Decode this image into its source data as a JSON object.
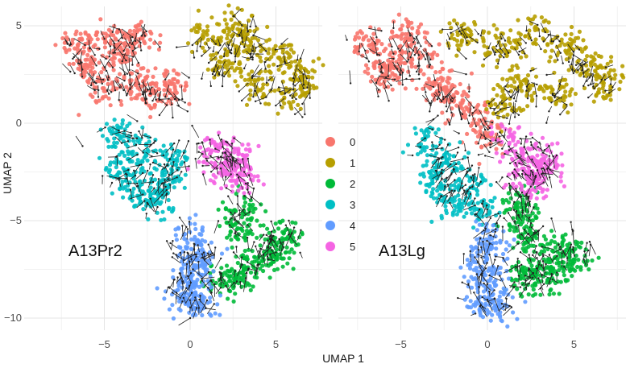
{
  "chart_data": [
    {
      "type": "scatter",
      "panel_label": "A13Pr2",
      "xlabel": "UMAP 1",
      "ylabel": "UMAP 2",
      "xticks": [
        -5,
        0,
        5
      ],
      "yticks": [
        5,
        0,
        -5,
        -10
      ],
      "xlim": [
        -9.5,
        7.8
      ],
      "ylim": [
        -11.2,
        6
      ],
      "grid": true,
      "overlay": "velocity arrows (black)",
      "clusters": [
        {
          "name": "0",
          "anchors": [
            [
              -6,
              3
            ],
            [
              -4,
              3.5
            ],
            [
              -3,
              2
            ],
            [
              -5,
              2
            ],
            [
              -2,
              1.5
            ],
            [
              -1,
              1.8
            ],
            [
              -4.5,
              4.3
            ],
            [
              -6.5,
              4
            ],
            [
              -3,
              4.5
            ]
          ]
        },
        {
          "name": "1",
          "anchors": [
            [
              1,
              4.5
            ],
            [
              3,
              4
            ],
            [
              5,
              3.5
            ],
            [
              6.5,
              2.5
            ],
            [
              4,
              2
            ],
            [
              2,
              3
            ],
            [
              6,
              1.5
            ],
            [
              3,
              5
            ]
          ]
        },
        {
          "name": "2",
          "anchors": [
            [
              3,
              -4.5
            ],
            [
              3,
              -5.5
            ],
            [
              4,
              -7
            ],
            [
              5,
              -6.5
            ],
            [
              5.5,
              -6
            ],
            [
              3,
              -7.8
            ],
            [
              2,
              -8
            ]
          ]
        },
        {
          "name": "3",
          "anchors": [
            [
              -4,
              -0.5
            ],
            [
              -3,
              -1.5
            ],
            [
              -4,
              -2.5
            ],
            [
              -3,
              -3.5
            ],
            [
              -2,
              -4
            ],
            [
              -1.5,
              -3
            ],
            [
              -1,
              -2
            ]
          ]
        },
        {
          "name": "4",
          "anchors": [
            [
              0,
              -6
            ],
            [
              0,
              -7.5
            ],
            [
              0,
              -8.5
            ],
            [
              0.5,
              -9.5
            ],
            [
              -0.3,
              -9
            ],
            [
              0.5,
              -7
            ]
          ]
        },
        {
          "name": "5",
          "anchors": [
            [
              1.5,
              -1.5
            ],
            [
              2.5,
              -1.8
            ],
            [
              3,
              -2.8
            ],
            [
              2,
              -2.6
            ]
          ]
        }
      ]
    },
    {
      "type": "scatter",
      "panel_label": "A13Lg",
      "xlabel": "UMAP 1",
      "xticks": [
        -5,
        0,
        5
      ],
      "xlim": [
        -8.5,
        8
      ],
      "ylim": [
        -11.2,
        6
      ],
      "grid": true,
      "overlay": "velocity arrows (black)",
      "clusters": [
        {
          "name": "0",
          "anchors": [
            [
              -7,
              4
            ],
            [
              -5.5,
              3
            ],
            [
              -4,
              3.5
            ],
            [
              -3,
              2
            ],
            [
              -2,
              1.5
            ],
            [
              -1,
              0.5
            ],
            [
              0,
              -0.5
            ],
            [
              -6,
              2.5
            ],
            [
              -4.5,
              4.5
            ]
          ]
        },
        {
          "name": "1",
          "anchors": [
            [
              -1.5,
              4.5
            ],
            [
              0.5,
              4
            ],
            [
              2.5,
              4.5
            ],
            [
              4.5,
              4
            ],
            [
              6,
              3
            ],
            [
              7,
              2
            ],
            [
              2,
              2
            ],
            [
              4,
              1.5
            ],
            [
              1,
              1
            ]
          ]
        },
        {
          "name": "2",
          "anchors": [
            [
              2,
              -4
            ],
            [
              2,
              -5
            ],
            [
              2.5,
              -6
            ],
            [
              3,
              -7.5
            ],
            [
              4.5,
              -6.5
            ],
            [
              5,
              -7
            ],
            [
              2,
              -8
            ],
            [
              3.5,
              -8
            ]
          ]
        },
        {
          "name": "3",
          "anchors": [
            [
              -3.5,
              -1
            ],
            [
              -2.5,
              -2
            ],
            [
              -3,
              -3
            ],
            [
              -2,
              -4
            ],
            [
              -1,
              -3
            ],
            [
              -0.5,
              -4.5
            ]
          ]
        },
        {
          "name": "4",
          "anchors": [
            [
              0,
              -6
            ],
            [
              0,
              -7
            ],
            [
              0,
              -8
            ],
            [
              -0.3,
              -9
            ],
            [
              0.5,
              -9.5
            ]
          ]
        },
        {
          "name": "5",
          "anchors": [
            [
              1.5,
              -1
            ],
            [
              2.5,
              -2
            ],
            [
              3.5,
              -2
            ],
            [
              2,
              -2.8
            ],
            [
              3,
              -3
            ]
          ]
        }
      ]
    }
  ],
  "legend": {
    "placement": "center-right of left panel",
    "items": [
      {
        "label": "0",
        "color": "#F8766D"
      },
      {
        "label": "1",
        "color": "#B79F00"
      },
      {
        "label": "2",
        "color": "#00BA38"
      },
      {
        "label": "3",
        "color": "#00BFC4"
      },
      {
        "label": "4",
        "color": "#619CFF"
      },
      {
        "label": "5",
        "color": "#F564E3"
      }
    ]
  }
}
